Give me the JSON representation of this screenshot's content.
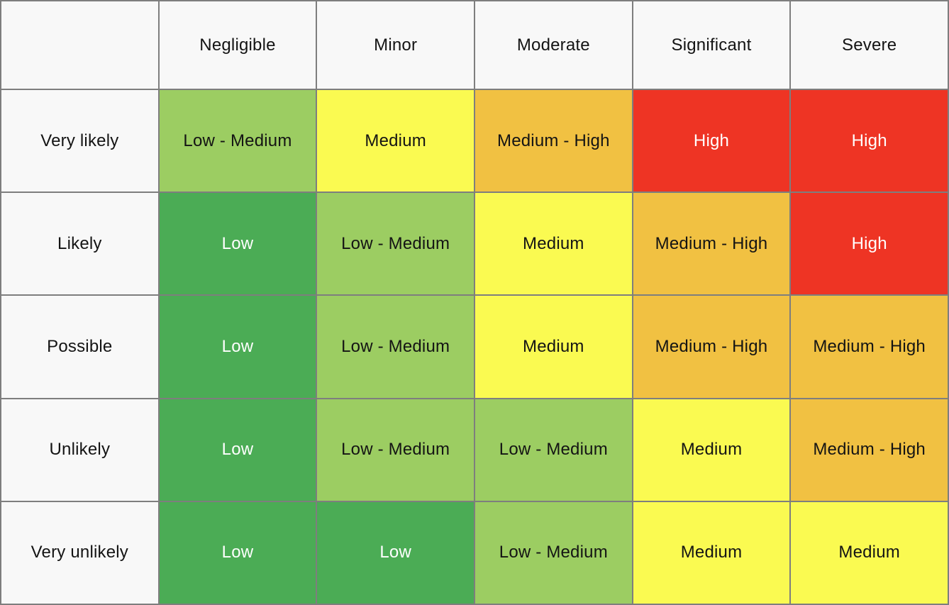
{
  "colors": {
    "low": "#4BAC55",
    "low_medium": "#9CCD62",
    "medium": "#FAFA51",
    "medium_high": "#F1C142",
    "high": "#EE3424",
    "header_bg": "#F8F8F8",
    "grid_line": "#7E7E7E",
    "text_dark": "#141414",
    "text_light": "#FFFFFF"
  },
  "chart_data": {
    "type": "heatmap",
    "title": "",
    "xlabel": "",
    "ylabel": "",
    "x_categories": [
      "Negligible",
      "Minor",
      "Moderate",
      "Significant",
      "Severe"
    ],
    "y_categories": [
      "Very likely",
      "Likely",
      "Possible",
      "Unlikely",
      "Very unlikely"
    ],
    "corner_label": "",
    "cells": [
      [
        {
          "label": "Low - Medium",
          "level": "low_medium"
        },
        {
          "label": "Medium",
          "level": "medium"
        },
        {
          "label": "Medium - High",
          "level": "medium_high"
        },
        {
          "label": "High",
          "level": "high"
        },
        {
          "label": "High",
          "level": "high"
        }
      ],
      [
        {
          "label": "Low",
          "level": "low"
        },
        {
          "label": "Low - Medium",
          "level": "low_medium"
        },
        {
          "label": "Medium",
          "level": "medium"
        },
        {
          "label": "Medium - High",
          "level": "medium_high"
        },
        {
          "label": "High",
          "level": "high"
        }
      ],
      [
        {
          "label": "Low",
          "level": "low"
        },
        {
          "label": "Low - Medium",
          "level": "low_medium"
        },
        {
          "label": "Medium",
          "level": "medium"
        },
        {
          "label": "Medium - High",
          "level": "medium_high"
        },
        {
          "label": "Medium - High",
          "level": "medium_high"
        }
      ],
      [
        {
          "label": "Low",
          "level": "low"
        },
        {
          "label": "Low - Medium",
          "level": "low_medium"
        },
        {
          "label": "Low - Medium",
          "level": "low_medium"
        },
        {
          "label": "Medium",
          "level": "medium"
        },
        {
          "label": "Medium - High",
          "level": "medium_high"
        }
      ],
      [
        {
          "label": "Low",
          "level": "low"
        },
        {
          "label": "Low",
          "level": "low"
        },
        {
          "label": "Low - Medium",
          "level": "low_medium"
        },
        {
          "label": "Medium",
          "level": "medium"
        },
        {
          "label": "Medium",
          "level": "medium"
        }
      ]
    ]
  }
}
